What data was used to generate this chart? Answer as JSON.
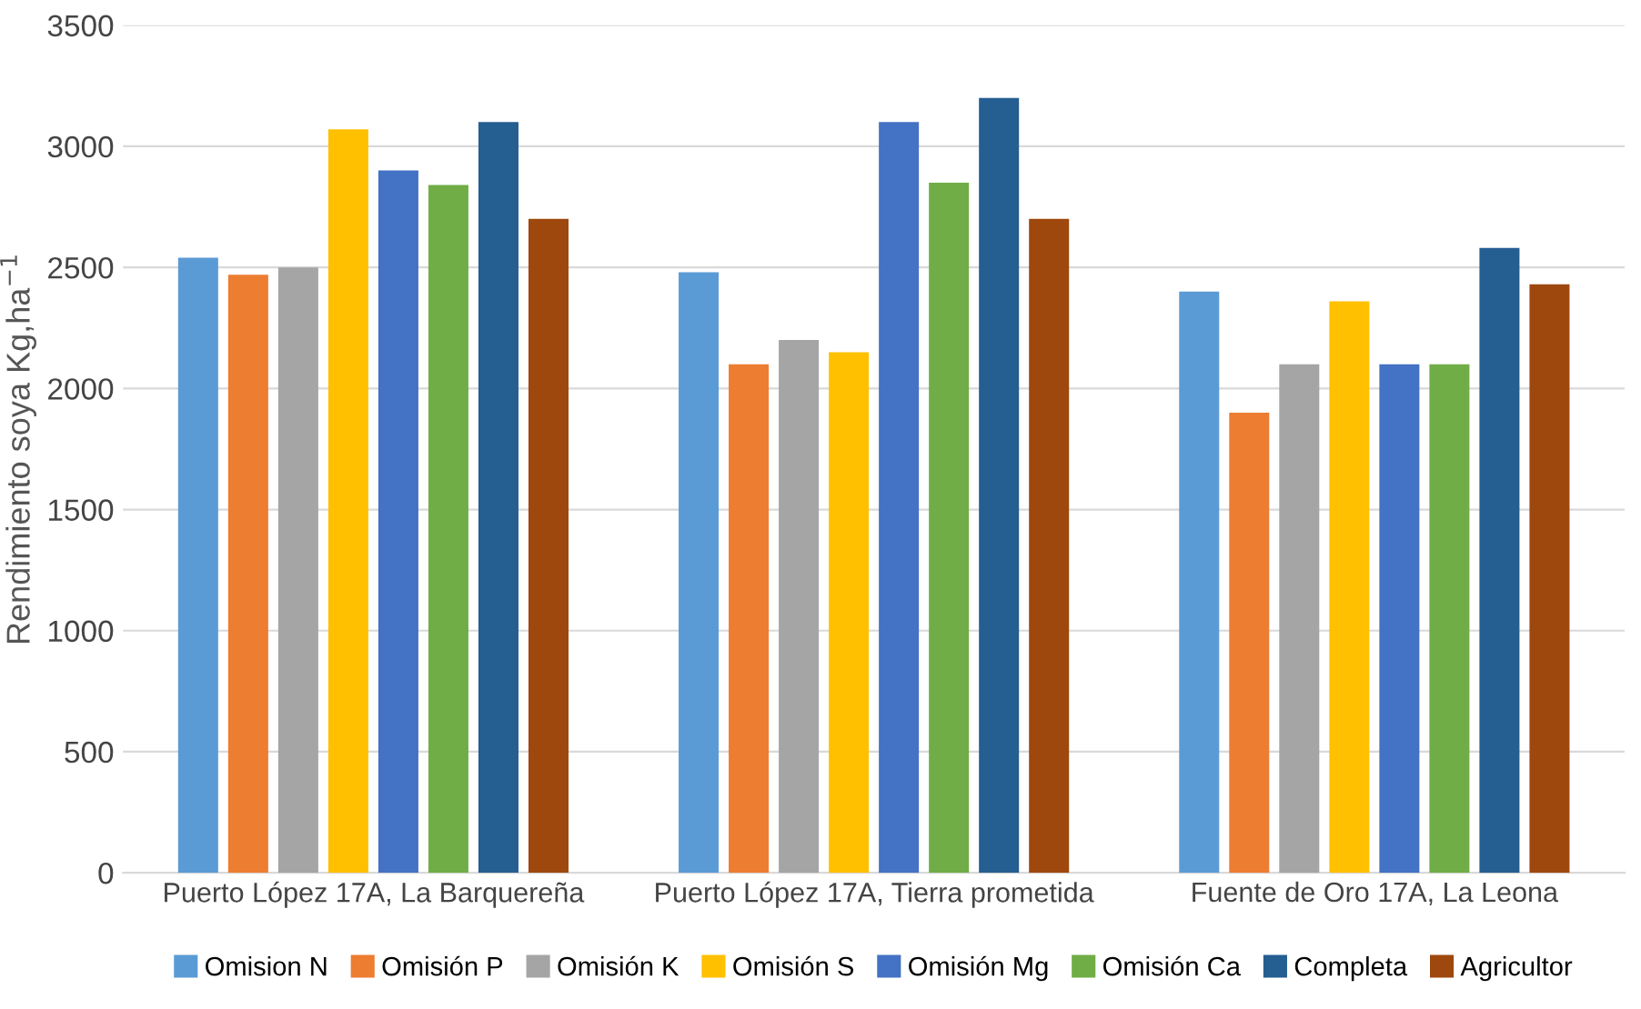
{
  "chart_data": {
    "type": "bar",
    "ylabel": "Rendimiento soya Kg,ha$^{−1}$",
    "categories": [
      "Puerto López 17A, La Barquereña",
      "Puerto López 17A, Tierra prometida",
      "Fuente de Oro 17A, La Leona"
    ],
    "series": [
      {
        "name": "Omision N",
        "color": "#5b9bd5",
        "values": [
          2540,
          2480,
          2400
        ]
      },
      {
        "name": "Omisión P",
        "color": "#ed7d31",
        "values": [
          2470,
          2100,
          1900
        ]
      },
      {
        "name": "Omisión K",
        "color": "#a5a5a5",
        "values": [
          2500,
          2200,
          2100
        ]
      },
      {
        "name": "Omisión S",
        "color": "#ffc000",
        "values": [
          3070,
          2150,
          2360
        ]
      },
      {
        "name": "Omisión Mg",
        "color": "#4472c4",
        "values": [
          2900,
          3100,
          2100
        ]
      },
      {
        "name": "Omisión Ca",
        "color": "#70ad47",
        "values": [
          2840,
          2850,
          2100
        ]
      },
      {
        "name": "Completa",
        "color": "#255e91",
        "values": [
          3100,
          3200,
          2580
        ]
      },
      {
        "name": "Agricultor",
        "color": "#9e480e",
        "values": [
          2700,
          2700,
          2430
        ]
      }
    ],
    "ylim": [
      0,
      3500
    ],
    "yticks": [
      0,
      500,
      1000,
      1500,
      2000,
      2500,
      3000,
      3500
    ],
    "grid": "y",
    "legend": "bottom"
  }
}
